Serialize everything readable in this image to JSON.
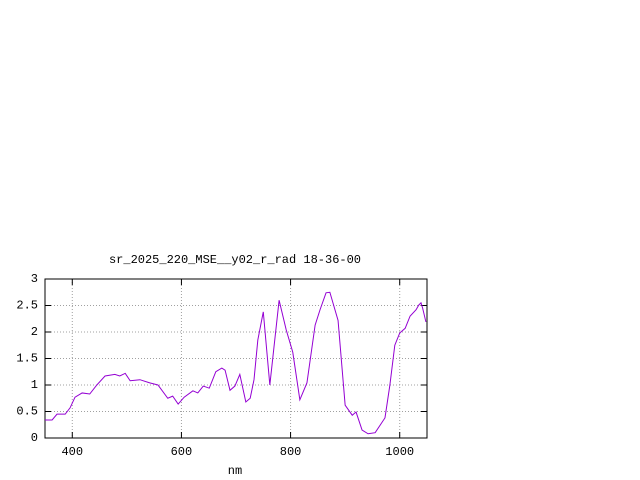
{
  "chart_data": {
    "type": "line",
    "title": "sr_2025_220_MSE__y02_r_rad 18-36-00",
    "x_label": "nm",
    "x": [
      350,
      363,
      372,
      387,
      396,
      405,
      418,
      432,
      445,
      460,
      478,
      487,
      497,
      506,
      524,
      542,
      557,
      575,
      584,
      594,
      605,
      621,
      630,
      640,
      651,
      663,
      674,
      680,
      689,
      698,
      707,
      718,
      726,
      733,
      740,
      750,
      762,
      779,
      792,
      804,
      817,
      830,
      845,
      854,
      865,
      872,
      887,
      900,
      913,
      920,
      931,
      942,
      955,
      973,
      982,
      991,
      1000,
      1010,
      1019,
      1030,
      1035,
      1039,
      1042,
      1048
    ],
    "series": [
      {
        "name": "sr_2025_220_MSE__y02_r_rad",
        "color": "#9400d3",
        "values": [
          0.34,
          0.34,
          0.45,
          0.45,
          0.57,
          0.77,
          0.85,
          0.83,
          1.0,
          1.17,
          1.2,
          1.17,
          1.22,
          1.08,
          1.1,
          1.04,
          1.0,
          0.75,
          0.79,
          0.64,
          0.77,
          0.89,
          0.85,
          0.98,
          0.94,
          1.25,
          1.32,
          1.28,
          0.9,
          0.98,
          1.2,
          0.68,
          0.75,
          1.1,
          1.85,
          2.38,
          1.0,
          2.6,
          2.04,
          1.62,
          0.72,
          1.04,
          2.13,
          2.42,
          2.74,
          2.75,
          2.22,
          0.62,
          0.43,
          0.49,
          0.15,
          0.08,
          0.1,
          0.38,
          1.0,
          1.75,
          1.98,
          2.07,
          2.3,
          2.42,
          2.51,
          2.55,
          2.45,
          2.19
        ]
      }
    ],
    "xlim": [
      350,
      1050
    ],
    "ylim": [
      0,
      3
    ],
    "xticks": [
      400,
      600,
      800,
      1000
    ],
    "yticks": [
      0,
      0.5,
      1,
      1.5,
      2,
      2.5,
      3
    ],
    "grid": true
  }
}
